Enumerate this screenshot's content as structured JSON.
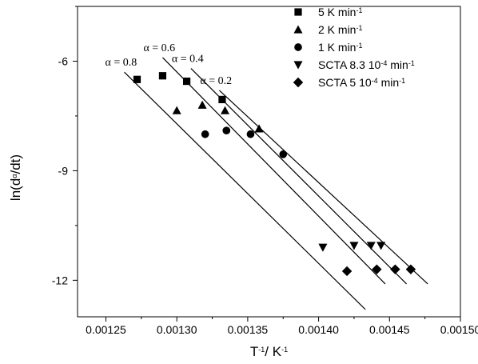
{
  "chart_data": {
    "type": "scatter",
    "xlabel_parts": [
      "T",
      "-1",
      "/ K",
      "-1"
    ],
    "ylabel_parts": [
      "ln(d",
      "α",
      "/dt)"
    ],
    "xlim": [
      0.00123,
      0.0015
    ],
    "ylim": [
      -13.0,
      -4.5
    ],
    "x_ticks": [
      0.00125,
      0.0013,
      0.00135,
      0.0014,
      0.00145,
      0.0015
    ],
    "x_tick_labels": [
      "0.00125",
      "0.00130",
      "0.00135",
      "0.00140",
      "0.00145",
      "0.00150"
    ],
    "y_ticks": [
      -6,
      -9,
      -12
    ],
    "y_tick_labels": [
      "-6",
      "-9",
      "-12"
    ],
    "legend": {
      "placement": "top-right",
      "entries": [
        {
          "marker": "square",
          "parts": [
            "5 K min",
            "-1",
            ""
          ]
        },
        {
          "marker": "triangle-up",
          "parts": [
            "2 K min",
            "-1",
            ""
          ]
        },
        {
          "marker": "circle",
          "parts": [
            "1 K min",
            "-1",
            ""
          ]
        },
        {
          "marker": "triangle-down",
          "parts": [
            "SCTA 8.3 10",
            "-4",
            " min",
            "-1",
            ""
          ]
        },
        {
          "marker": "diamond",
          "parts": [
            "SCTA 5 10",
            "-4",
            " min",
            "-1",
            ""
          ]
        }
      ]
    },
    "series": [
      {
        "marker": "square",
        "points": [
          [
            0.001272,
            -6.5
          ],
          [
            0.00129,
            -6.4
          ],
          [
            0.001307,
            -6.55
          ],
          [
            0.001332,
            -7.05
          ]
        ]
      },
      {
        "marker": "triangle-up",
        "points": [
          [
            0.0013,
            -7.35
          ],
          [
            0.001318,
            -7.2
          ],
          [
            0.001334,
            -7.35
          ],
          [
            0.001358,
            -7.85
          ]
        ]
      },
      {
        "marker": "circle",
        "points": [
          [
            0.00132,
            -8.0
          ],
          [
            0.001335,
            -7.9
          ],
          [
            0.001352,
            -8.0
          ],
          [
            0.001375,
            -8.55
          ]
        ]
      },
      {
        "marker": "triangle-down",
        "points": [
          [
            0.001403,
            -11.1
          ],
          [
            0.001425,
            -11.05
          ],
          [
            0.001437,
            -11.05
          ],
          [
            0.001444,
            -11.05
          ]
        ]
      },
      {
        "marker": "diamond",
        "points": [
          [
            0.00142,
            -11.75
          ],
          [
            0.001441,
            -11.7
          ],
          [
            0.001454,
            -11.7
          ],
          [
            0.001465,
            -11.7
          ]
        ]
      }
    ],
    "fit_lines": [
      {
        "label": "α = 0.2",
        "from": [
          0.00133,
          -6.8
        ],
        "to": [
          0.001477,
          -12.1
        ]
      },
      {
        "label": "α = 0.4",
        "from": [
          0.00131,
          -6.2
        ],
        "to": [
          0.001462,
          -12.1
        ]
      },
      {
        "label": "α = 0.6",
        "from": [
          0.00129,
          -5.9
        ],
        "to": [
          0.001447,
          -12.1
        ]
      },
      {
        "label": "α = 0.8",
        "from": [
          0.001263,
          -6.3
        ],
        "to": [
          0.001433,
          -12.8
        ]
      }
    ]
  }
}
